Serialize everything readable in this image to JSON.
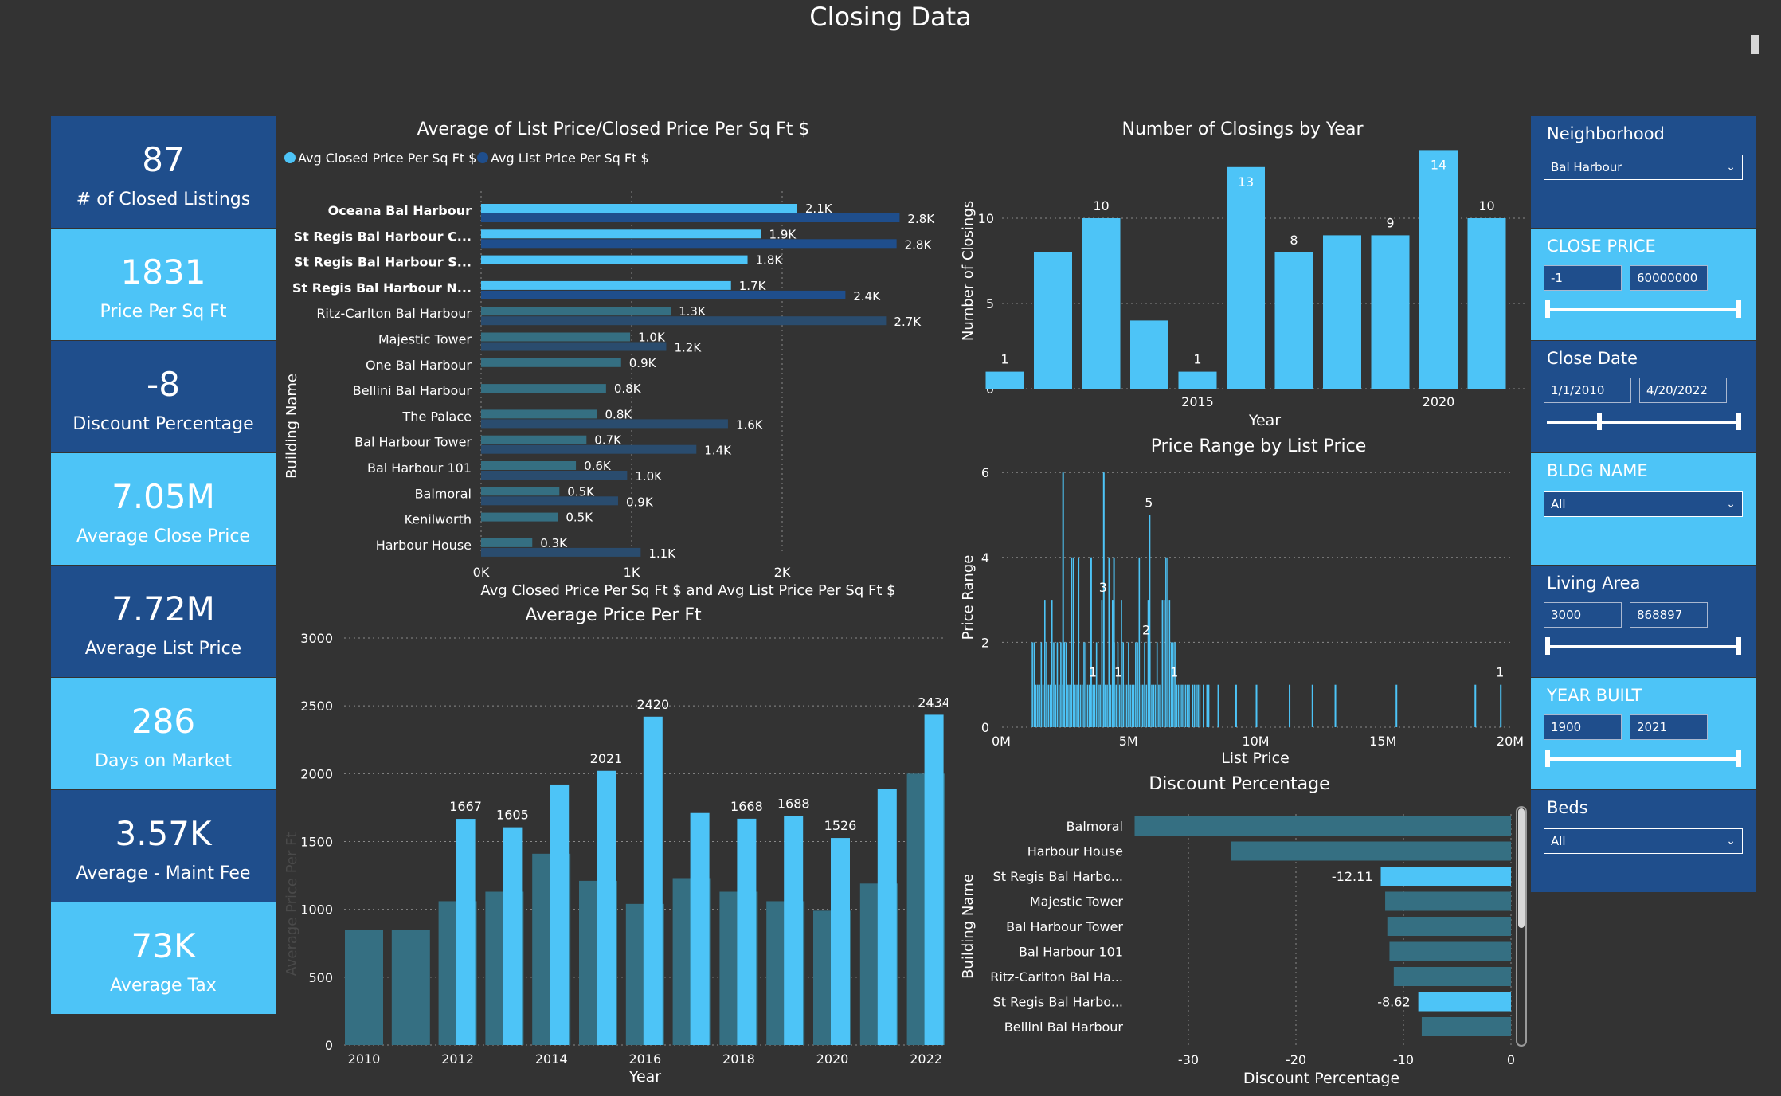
{
  "page_title": "Closing Data",
  "kpis": [
    {
      "value": "87",
      "label": "# of Closed Listings",
      "bg": "#1f4e8c"
    },
    {
      "value": "1831",
      "label": "Price Per Sq Ft",
      "bg": "#4dc4f7"
    },
    {
      "value": "-8",
      "label": "Discount Percentage",
      "bg": "#1f4e8c"
    },
    {
      "value": "7.05M",
      "label": "Average Close Price",
      "bg": "#4dc4f7"
    },
    {
      "value": "7.72M",
      "label": "Average List Price",
      "bg": "#1f4e8c"
    },
    {
      "value": "286",
      "label": "Days on Market",
      "bg": "#4dc4f7"
    },
    {
      "value": "3.57K",
      "label": "Average - Maint Fee",
      "bg": "#1f4e8c"
    },
    {
      "value": "73K",
      "label": "Average Tax",
      "bg": "#4dc4f7"
    }
  ],
  "slicers": {
    "neighborhood": {
      "title": "Neighborhood",
      "value": "Bal Harbour",
      "bg": "#1f4e8c"
    },
    "close_price": {
      "title": "CLOSE PRICE",
      "min": "-1",
      "max": "60000000",
      "bg": "#4dc4f7"
    },
    "close_date": {
      "title": "Close Date",
      "min": "1/1/2010",
      "max": "4/20/2022",
      "bg": "#1f4e8c"
    },
    "bldg_name": {
      "title": "BLDG NAME",
      "value": "All",
      "bg": "#4dc4f7"
    },
    "living_area": {
      "title": "Living Area",
      "min": "3000",
      "max": "868897",
      "bg": "#1f4e8c"
    },
    "year_built": {
      "title": "YEAR BUILT",
      "min": "1900",
      "max": "2021",
      "bg": "#4dc4f7"
    },
    "beds": {
      "title": "Beds",
      "value": "All",
      "bg": "#1f4e8c"
    }
  },
  "colors": {
    "light": "#4dc4f7",
    "dark": "#1f4e8c",
    "teal": "#356f82",
    "bg": "#333333"
  },
  "chart_data": [
    {
      "id": "list_closed_ppsf",
      "type": "bar",
      "orientation": "horizontal",
      "title": "Average of List Price/Closed Price Per Sq Ft $",
      "xlabel": "Avg Closed Price Per Sq Ft $ and Avg List Price Per Sq Ft $",
      "ylabel": "Building Name",
      "xlim": [
        0,
        2800
      ],
      "xticks": [
        "0K",
        "1K",
        "2K"
      ],
      "legend": [
        "Avg Closed Price Per Sq Ft $",
        "Avg List Price Per Sq Ft $"
      ],
      "categories": [
        "Oceana Bal Harbour",
        "St Regis Bal Harbour C...",
        "St Regis Bal Harbour S...",
        "St Regis Bal Harbour N...",
        "Ritz-Carlton Bal Harbour",
        "Majestic Tower",
        "One Bal Harbour",
        "Bellini Bal Harbour",
        "The Palace",
        "Bal Harbour Tower",
        "Bal Harbour 101",
        "Balmoral",
        "Kenilworth",
        "Harbour House"
      ],
      "bold_categories": [
        0,
        1,
        2,
        3
      ],
      "series": [
        {
          "name": "Avg Closed Price Per Sq Ft $",
          "values": [
            2100,
            1860,
            1770,
            1660,
            1260,
            990,
            930,
            830,
            770,
            700,
            630,
            520,
            510,
            340
          ],
          "labels": [
            "2.1K",
            "1.9K",
            "1.8K",
            "1.7K",
            "1.3K",
            "1.0K",
            "0.9K",
            "0.8K",
            "0.8K",
            "0.7K",
            "0.6K",
            "0.5K",
            "0.5K",
            "0.3K"
          ]
        },
        {
          "name": "Avg List Price Per Sq Ft $",
          "values": [
            2780,
            2760,
            null,
            2420,
            2690,
            1230,
            null,
            null,
            1640,
            1430,
            970,
            910,
            null,
            1060
          ],
          "labels": [
            "2.8K",
            "2.8K",
            "",
            "2.4K",
            "2.7K",
            "1.2K",
            "",
            "",
            "1.6K",
            "1.4K",
            "1.0K",
            "0.9K",
            "",
            "1.1K"
          ]
        }
      ]
    },
    {
      "id": "closings_by_year",
      "type": "bar",
      "title": "Number of Closings by Year",
      "xlabel": "Year",
      "ylabel": "Number of Closings",
      "ylim": [
        0,
        14
      ],
      "yticks": [
        0,
        5,
        10
      ],
      "x": [
        2011,
        2012,
        2013,
        2014,
        2015,
        2016,
        2017,
        2018,
        2019,
        2020,
        2021,
        2022
      ],
      "xticks": [
        2015,
        2020
      ],
      "values": [
        1,
        8,
        10,
        4,
        1,
        13,
        8,
        9,
        9,
        14,
        10,
        null
      ],
      "labels": [
        "1",
        "",
        "10",
        "",
        "1",
        "13",
        "8",
        "",
        "9",
        "14",
        "10",
        ""
      ]
    },
    {
      "id": "price_range",
      "type": "bar",
      "title": "Price Range by List Price",
      "xlabel": "List Price",
      "ylabel": "Price Range",
      "xlim": [
        0,
        20000000
      ],
      "ylim": [
        0,
        6
      ],
      "xticks": [
        "0M",
        "5M",
        "10M",
        "15M",
        "20M"
      ],
      "yticks": [
        0,
        2,
        4,
        6
      ],
      "annotations": [
        {
          "x": 4000000,
          "y": 3,
          "text": "3"
        },
        {
          "x": 5800000,
          "y": 5,
          "text": "5"
        },
        {
          "x": 5700000,
          "y": 2,
          "text": "2"
        },
        {
          "x": 3600000,
          "y": 1,
          "text": "1"
        },
        {
          "x": 4600000,
          "y": 1,
          "text": "1"
        },
        {
          "x": 6800000,
          "y": 1,
          "text": "1"
        },
        {
          "x": 19600000,
          "y": 1,
          "text": "1"
        }
      ]
    },
    {
      "id": "avg_price_per_ft",
      "type": "bar",
      "title": "Average Price Per Ft",
      "xlabel": "Year",
      "ylabel": "Average Price Per Ft",
      "ylim": [
        0,
        3000
      ],
      "yticks": [
        0,
        500,
        1000,
        1500,
        2000,
        2500,
        3000
      ],
      "xticks": [
        "2010",
        "2012",
        "2014",
        "2016",
        "2018",
        "2020",
        "2022"
      ],
      "categories": [
        "2010",
        "2011",
        "2012",
        "2013",
        "2014",
        "2015",
        "2016",
        "2017",
        "2018",
        "2019",
        "2020",
        "2021",
        "2022"
      ],
      "series": [
        {
          "name": "background",
          "values": [
            850,
            850,
            1060,
            1130,
            1410,
            1210,
            1040,
            1230,
            1130,
            1060,
            990,
            1190,
            2000
          ]
        },
        {
          "name": "Average Price Per Ft",
          "values": [
            null,
            null,
            1667,
            1605,
            1920,
            2021,
            2420,
            1710,
            1668,
            1688,
            1526,
            1890,
            2434
          ]
        }
      ],
      "labels": [
        "",
        "",
        "1667",
        "1605",
        "",
        "2021",
        "2420",
        "",
        "1668",
        "1688",
        "1526",
        "",
        "2434"
      ]
    },
    {
      "id": "discount_pct",
      "type": "bar",
      "orientation": "horizontal",
      "title": "Discount Percentage",
      "xlabel": "Discount Percentage",
      "ylabel": "Building Name",
      "xlim": [
        -35,
        0
      ],
      "xticks": [
        -30,
        -20,
        -10,
        0
      ],
      "categories": [
        "Balmoral",
        "Harbour House",
        "St Regis Bal Harbo...",
        "Majestic Tower",
        "Bal Harbour Tower",
        "Bal Harbour 101",
        "Ritz-Carlton Bal Ha...",
        "St Regis Bal Harbo...",
        "Bellini Bal Harbour"
      ],
      "values": [
        -35,
        -26,
        -12.11,
        -11.7,
        -11.5,
        -11.3,
        -10.9,
        -8.62,
        -8.3
      ],
      "highlight": [
        2,
        7
      ],
      "labels": [
        "",
        "",
        "-12.11",
        "",
        "",
        "",
        "",
        "-8.62",
        ""
      ]
    }
  ]
}
